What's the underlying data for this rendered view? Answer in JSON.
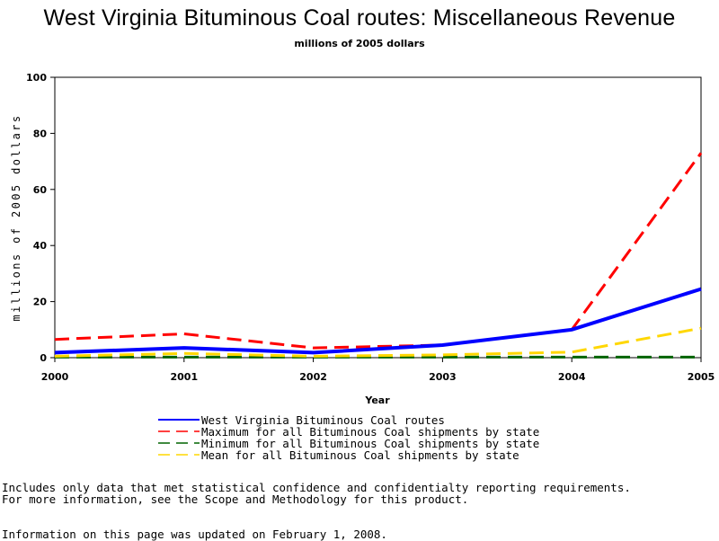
{
  "chart_data": {
    "type": "line",
    "title": "West Virginia Bituminous Coal routes: Miscellaneous Revenue",
    "subtitle": "millions of 2005 dollars",
    "xlabel": "Year",
    "ylabel": "millions of 2005 dollars",
    "x": [
      2000,
      2001,
      2002,
      2003,
      2004,
      2005
    ],
    "xticks": [
      "2000",
      "2001",
      "2002",
      "2003",
      "2004",
      "2005"
    ],
    "yticks": [
      "0",
      "20",
      "40",
      "60",
      "80",
      "100"
    ],
    "ylim": [
      0,
      100
    ],
    "xlim": [
      2000,
      2005
    ],
    "grid": false,
    "legend_position": "bottom",
    "series": [
      {
        "name": "West Virginia Bituminous Coal routes",
        "values": [
          1.8,
          3.5,
          1.8,
          4.5,
          10.0,
          24.5
        ],
        "color": "#0000ff",
        "style": "solid"
      },
      {
        "name": "Maximum for all Bituminous Coal shipments by state",
        "values": [
          6.5,
          8.5,
          3.5,
          4.5,
          10.0,
          73.0
        ],
        "color": "#ff0000",
        "style": "dashed"
      },
      {
        "name": "Minimum for all Bituminous Coal shipments by state",
        "values": [
          0.2,
          0.2,
          0.2,
          0.2,
          0.2,
          0.2
        ],
        "color": "#006400",
        "style": "dashed"
      },
      {
        "name": "Mean for all Bituminous Coal shipments by state",
        "values": [
          0.5,
          1.5,
          0.5,
          1.0,
          2.0,
          10.5
        ],
        "color": "#ffd700",
        "style": "dashed"
      }
    ]
  },
  "footnotes": {
    "line1": "Includes only data that met statistical confidence and confidentialty reporting requirements.",
    "line2": "For more information, see the Scope and Methodology for this product.",
    "line3": "Information on this page was updated on February 1, 2008."
  }
}
